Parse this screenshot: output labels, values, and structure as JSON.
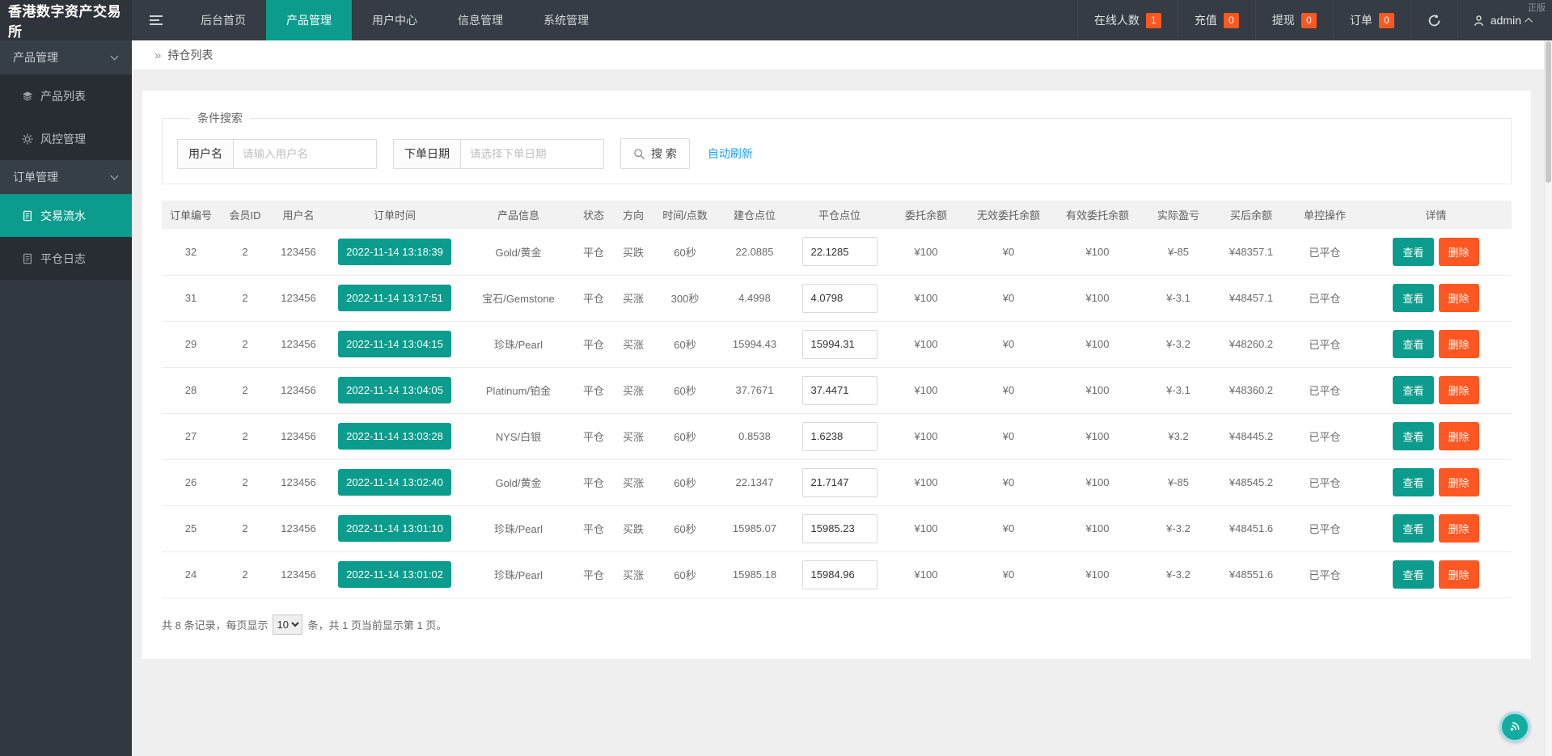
{
  "watermark": "正版",
  "topbar": {
    "logo": "香港数字资产交易所",
    "nav": [
      {
        "label": "后台首页",
        "active": false
      },
      {
        "label": "产品管理",
        "active": true
      },
      {
        "label": "用户中心",
        "active": false
      },
      {
        "label": "信息管理",
        "active": false
      },
      {
        "label": "系统管理",
        "active": false
      }
    ],
    "stats": [
      {
        "label": "在线人数",
        "value": "1"
      },
      {
        "label": "充值",
        "value": "0"
      },
      {
        "label": "提现",
        "value": "0"
      },
      {
        "label": "订单",
        "value": "0"
      }
    ],
    "user": "admin"
  },
  "sidebar": {
    "sections": [
      {
        "label": "产品管理",
        "items": [
          {
            "label": "产品列表",
            "icon": "layers-icon",
            "active": false
          },
          {
            "label": "风控管理",
            "icon": "gear-icon",
            "active": false
          }
        ]
      },
      {
        "label": "订单管理",
        "items": [
          {
            "label": "交易流水",
            "icon": "document-icon",
            "active": true
          },
          {
            "label": "平仓日志",
            "icon": "document-icon",
            "active": false
          }
        ]
      }
    ]
  },
  "breadcrumb": "持仓列表",
  "search": {
    "legend": "条件搜索",
    "username_label": "用户名",
    "username_placeholder": "请输入用户名",
    "date_label": "下单日期",
    "date_placeholder": "请选择下单日期",
    "button": "搜 索",
    "auto_refresh": "自动刷新"
  },
  "table": {
    "headers": [
      "订单编号",
      "会员ID",
      "用户名",
      "订单时间",
      "产品信息",
      "状态",
      "方向",
      "时间/点数",
      "建仓点位",
      "平仓点位",
      "委托余额",
      "无效委托余额",
      "有效委托余额",
      "实际盈亏",
      "买后余额",
      "单控操作",
      "详情"
    ],
    "actions": {
      "view": "查看",
      "delete": "删除"
    },
    "rows": [
      {
        "order_id": "32",
        "member_id": "2",
        "username": "123456",
        "time": "2022-11-14 13:18:39",
        "product": "Gold/黄金",
        "status": "平仓",
        "direction": "买跌",
        "direction_color": "green",
        "period": "60秒",
        "open_point": "22.0885",
        "close_point": "22.1285",
        "entrust": "¥100",
        "invalid_entrust": "¥0",
        "valid_entrust": "¥100",
        "profit": "¥-85",
        "profit_color": "green",
        "after_balance": "¥48357.1",
        "control": "已平仓"
      },
      {
        "order_id": "31",
        "member_id": "2",
        "username": "123456",
        "time": "2022-11-14 13:17:51",
        "product": "宝石/Gemstone",
        "status": "平仓",
        "direction": "买涨",
        "direction_color": "red",
        "period": "300秒",
        "open_point": "4.4998",
        "close_point": "4.0798",
        "entrust": "¥100",
        "invalid_entrust": "¥0",
        "valid_entrust": "¥100",
        "profit": "¥-3.1",
        "profit_color": "green",
        "after_balance": "¥48457.1",
        "control": "已平仓"
      },
      {
        "order_id": "29",
        "member_id": "2",
        "username": "123456",
        "time": "2022-11-14 13:04:15",
        "product": "珍珠/Pearl",
        "status": "平仓",
        "direction": "买涨",
        "direction_color": "red",
        "period": "60秒",
        "open_point": "15994.43",
        "close_point": "15994.31",
        "entrust": "¥100",
        "invalid_entrust": "¥0",
        "valid_entrust": "¥100",
        "profit": "¥-3.2",
        "profit_color": "green",
        "after_balance": "¥48260.2",
        "control": "已平仓"
      },
      {
        "order_id": "28",
        "member_id": "2",
        "username": "123456",
        "time": "2022-11-14 13:04:05",
        "product": "Platinum/铂金",
        "status": "平仓",
        "direction": "买涨",
        "direction_color": "red",
        "period": "60秒",
        "open_point": "37.7671",
        "close_point": "37.4471",
        "entrust": "¥100",
        "invalid_entrust": "¥0",
        "valid_entrust": "¥100",
        "profit": "¥-3.1",
        "profit_color": "green",
        "after_balance": "¥48360.2",
        "control": "已平仓"
      },
      {
        "order_id": "27",
        "member_id": "2",
        "username": "123456",
        "time": "2022-11-14 13:03:28",
        "product": "NYS/白银",
        "status": "平仓",
        "direction": "买涨",
        "direction_color": "red",
        "period": "60秒",
        "open_point": "0.8538",
        "close_point": "1.6238",
        "entrust": "¥100",
        "invalid_entrust": "¥0",
        "valid_entrust": "¥100",
        "profit": "¥3.2",
        "profit_color": "red",
        "after_balance": "¥48445.2",
        "control": "已平仓"
      },
      {
        "order_id": "26",
        "member_id": "2",
        "username": "123456",
        "time": "2022-11-14 13:02:40",
        "product": "Gold/黄金",
        "status": "平仓",
        "direction": "买涨",
        "direction_color": "red",
        "period": "60秒",
        "open_point": "22.1347",
        "close_point": "21.7147",
        "entrust": "¥100",
        "invalid_entrust": "¥0",
        "valid_entrust": "¥100",
        "profit": "¥-85",
        "profit_color": "green",
        "after_balance": "¥48545.2",
        "control": "已平仓"
      },
      {
        "order_id": "25",
        "member_id": "2",
        "username": "123456",
        "time": "2022-11-14 13:01:10",
        "product": "珍珠/Pearl",
        "status": "平仓",
        "direction": "买跌",
        "direction_color": "green",
        "period": "60秒",
        "open_point": "15985.07",
        "close_point": "15985.23",
        "entrust": "¥100",
        "invalid_entrust": "¥0",
        "valid_entrust": "¥100",
        "profit": "¥-3.2",
        "profit_color": "green",
        "after_balance": "¥48451.6",
        "control": "已平仓"
      },
      {
        "order_id": "24",
        "member_id": "2",
        "username": "123456",
        "time": "2022-11-14 13:01:02",
        "product": "珍珠/Pearl",
        "status": "平仓",
        "direction": "买涨",
        "direction_color": "red",
        "period": "60秒",
        "open_point": "15985.18",
        "close_point": "15984.96",
        "entrust": "¥100",
        "invalid_entrust": "¥0",
        "valid_entrust": "¥100",
        "profit": "¥-3.2",
        "profit_color": "green",
        "after_balance": "¥48551.6",
        "control": "已平仓"
      }
    ]
  },
  "pagination": {
    "prefix": "共 8 条记录，每页显示",
    "page_size": "10",
    "suffix": "条，共 1 页当前显示第 1 页。"
  },
  "colors": {
    "accent": "#0c9c8d",
    "danger": "#ff5722",
    "red": "#f20c0c",
    "green": "#1fa43e",
    "link": "#1e9fff",
    "topbar_bg": "#353c43",
    "sidebar_bg": "#31383f"
  }
}
